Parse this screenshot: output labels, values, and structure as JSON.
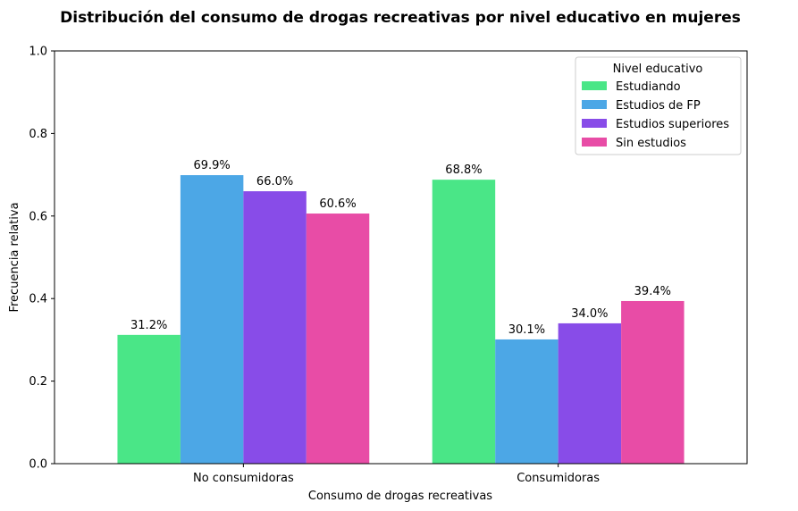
{
  "chart_data": {
    "type": "bar",
    "title": "Distribución del consumo de drogas recreativas por nivel educativo en mujeres",
    "xlabel": "Consumo de drogas recreativas",
    "ylabel": "Frecuencia relativa",
    "categories": [
      "No consumidoras",
      "Consumidoras"
    ],
    "ylim": [
      0,
      1.0
    ],
    "yticks": [
      0.0,
      0.2,
      0.4,
      0.6,
      0.8,
      1.0
    ],
    "ytick_labels": [
      "0.0",
      "0.2",
      "0.4",
      "0.6",
      "0.8",
      "1.0"
    ],
    "grid": false,
    "legend": {
      "title": "Nivel educativo",
      "placement": "top-right"
    },
    "series": [
      {
        "name": "Estudiando",
        "color": "#4ae687",
        "values": [
          0.312,
          0.688
        ],
        "labels": [
          "31.2%",
          "68.8%"
        ]
      },
      {
        "name": "Estudios de FP",
        "color": "#4ca7e6",
        "values": [
          0.699,
          0.301
        ],
        "labels": [
          "69.9%",
          "30.1%"
        ]
      },
      {
        "name": "Estudios superiores",
        "color": "#884ce8",
        "values": [
          0.66,
          0.34
        ],
        "labels": [
          "66.0%",
          "34.0%"
        ]
      },
      {
        "name": "Sin estudios",
        "color": "#e84ca6",
        "values": [
          0.606,
          0.394
        ],
        "labels": [
          "60.6%",
          "39.4%"
        ]
      }
    ]
  }
}
